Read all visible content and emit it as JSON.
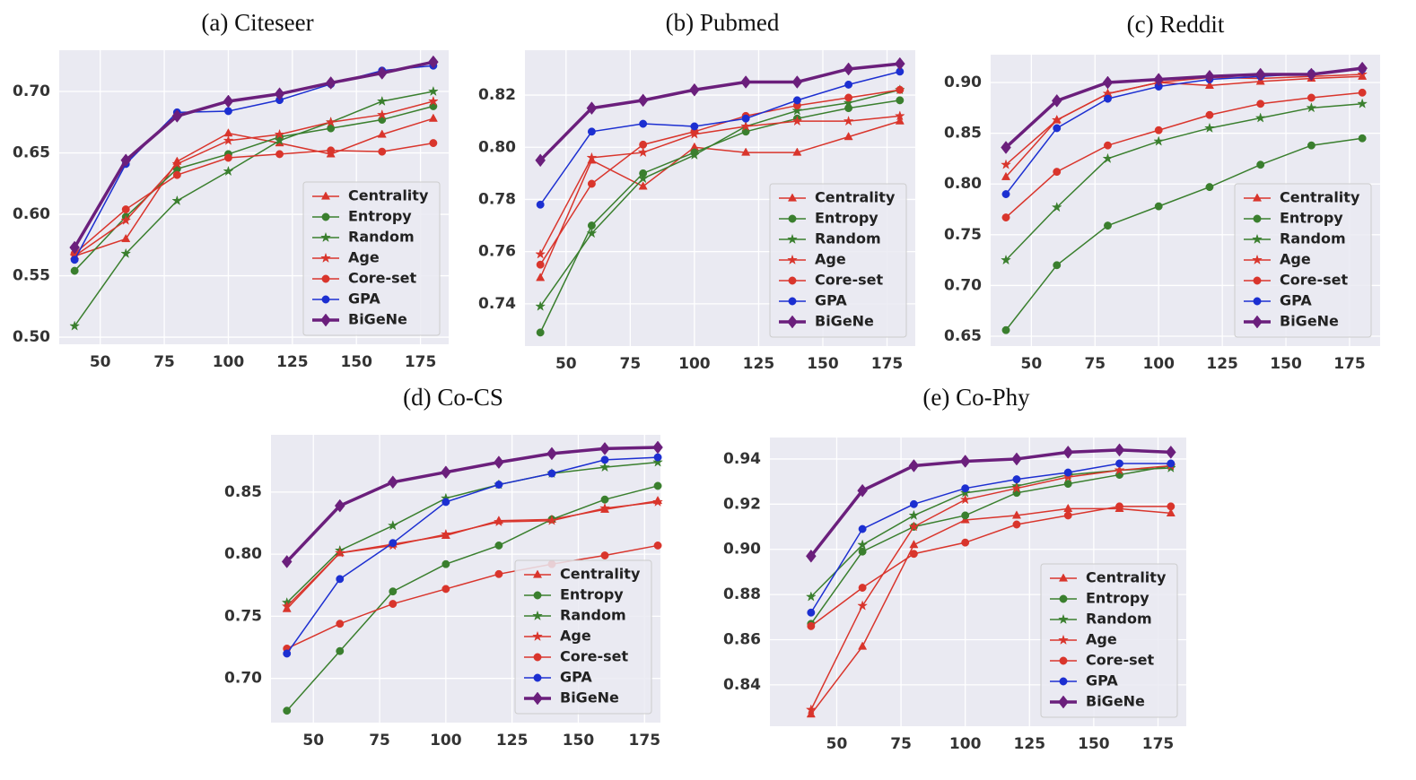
{
  "chart_data": [
    {
      "type": "line",
      "title": "(a) Citeseer",
      "x": [
        40,
        60,
        80,
        100,
        120,
        140,
        160,
        180
      ],
      "xlim": [
        34,
        186
      ],
      "xticks": [
        50,
        75,
        100,
        125,
        150,
        175
      ],
      "ylim": [
        0.4942,
        0.7336
      ],
      "yticks": [
        {
          "value": 0.5,
          "label": "0.50"
        },
        0.55,
        {
          "value": 0.6,
          "label": "0.60"
        },
        0.65,
        {
          "value": 0.7,
          "label": "0.70"
        }
      ],
      "grid": true,
      "background": "#eaeaf2",
      "legend": "lower right",
      "series": [
        {
          "name": "Centrality",
          "color": "#d9352c",
          "marker": "triangle",
          "linewidth": 1.5,
          "values": [
            0.566,
            0.58,
            0.643,
            0.666,
            0.658,
            0.649,
            0.665,
            0.678
          ]
        },
        {
          "name": "Entropy",
          "color": "#3a7f2e",
          "marker": "circle",
          "linewidth": 1.5,
          "values": [
            0.554,
            0.598,
            0.637,
            0.649,
            0.663,
            0.67,
            0.677,
            0.688
          ]
        },
        {
          "name": "Random",
          "color": "#3a7f2e",
          "marker": "star",
          "linewidth": 1.5,
          "values": [
            0.509,
            0.568,
            0.611,
            0.635,
            0.66,
            0.675,
            0.692,
            0.7
          ]
        },
        {
          "name": "Age",
          "color": "#d9352c",
          "marker": "star",
          "linewidth": 1.5,
          "values": [
            0.566,
            0.595,
            0.641,
            0.66,
            0.665,
            0.675,
            0.681,
            0.692
          ]
        },
        {
          "name": "Core-set",
          "color": "#d9352c",
          "marker": "circle",
          "linewidth": 1.5,
          "values": [
            0.568,
            0.604,
            0.632,
            0.646,
            0.649,
            0.652,
            0.651,
            0.658
          ]
        },
        {
          "name": "GPA",
          "color": "#1c2fd1",
          "marker": "circle",
          "linewidth": 1.5,
          "values": [
            0.563,
            0.641,
            0.683,
            0.684,
            0.693,
            0.706,
            0.717,
            0.721
          ]
        },
        {
          "name": "BiGeNe",
          "color": "#6b1f7c",
          "marker": "diamond",
          "linewidth": 3.5,
          "values": [
            0.573,
            0.644,
            0.68,
            0.692,
            0.698,
            0.707,
            0.715,
            0.724
          ]
        }
      ]
    },
    {
      "type": "line",
      "title": "(b) Pubmed",
      "x": [
        40,
        60,
        80,
        100,
        120,
        140,
        160,
        180
      ],
      "xlim": [
        34,
        186
      ],
      "xticks": [
        50,
        75,
        100,
        125,
        150,
        175
      ],
      "ylim": [
        0.7238,
        0.8372
      ],
      "yticks": [
        0.74,
        0.76,
        0.78,
        {
          "value": 0.8,
          "label": "0.80"
        },
        0.82
      ],
      "grid": true,
      "background": "#eaeaf2",
      "legend": "lower right",
      "series": [
        {
          "name": "Centrality",
          "color": "#d9352c",
          "marker": "triangle",
          "linewidth": 1.5,
          "values": [
            0.75,
            0.795,
            0.785,
            0.8,
            0.798,
            0.798,
            0.804,
            0.81
          ]
        },
        {
          "name": "Entropy",
          "color": "#3a7f2e",
          "marker": "circle",
          "linewidth": 1.5,
          "values": [
            0.729,
            0.77,
            0.79,
            0.798,
            0.806,
            0.811,
            0.815,
            0.818
          ]
        },
        {
          "name": "Random",
          "color": "#3a7f2e",
          "marker": "star",
          "linewidth": 1.5,
          "values": [
            0.739,
            0.767,
            0.788,
            0.797,
            0.808,
            0.814,
            0.817,
            0.822
          ]
        },
        {
          "name": "Age",
          "color": "#d9352c",
          "marker": "star",
          "linewidth": 1.5,
          "values": [
            0.759,
            0.796,
            0.798,
            0.805,
            0.808,
            0.81,
            0.81,
            0.812
          ]
        },
        {
          "name": "Core-set",
          "color": "#d9352c",
          "marker": "circle",
          "linewidth": 1.5,
          "values": [
            0.755,
            0.786,
            0.801,
            0.806,
            0.812,
            0.816,
            0.819,
            0.822
          ]
        },
        {
          "name": "GPA",
          "color": "#1c2fd1",
          "marker": "circle",
          "linewidth": 1.5,
          "values": [
            0.778,
            0.806,
            0.809,
            0.808,
            0.811,
            0.818,
            0.824,
            0.829
          ]
        },
        {
          "name": "BiGeNe",
          "color": "#6b1f7c",
          "marker": "diamond",
          "linewidth": 3.5,
          "values": [
            0.795,
            0.815,
            0.818,
            0.822,
            0.825,
            0.825,
            0.83,
            0.832
          ]
        }
      ]
    },
    {
      "type": "line",
      "title": "(c) Reddit",
      "x": [
        40,
        60,
        80,
        100,
        120,
        140,
        160,
        180
      ],
      "xlim": [
        34,
        187
      ],
      "xticks": [
        50,
        75,
        100,
        125,
        150,
        175
      ],
      "ylim": [
        0.6403,
        0.9274
      ],
      "yticks": [
        0.65,
        {
          "value": 0.7,
          "label": "0.70"
        },
        0.75,
        {
          "value": 0.8,
          "label": "0.80"
        },
        0.85,
        {
          "value": 0.9,
          "label": "0.90"
        }
      ],
      "grid": true,
      "background": "#eaeaf2",
      "legend": "lower right",
      "series": [
        {
          "name": "Centrality",
          "color": "#d9352c",
          "marker": "triangle",
          "linewidth": 1.5,
          "values": [
            0.807,
            0.863,
            0.889,
            0.9,
            0.897,
            0.901,
            0.904,
            0.906
          ]
        },
        {
          "name": "Entropy",
          "color": "#3a7f2e",
          "marker": "circle",
          "linewidth": 1.5,
          "values": [
            0.656,
            0.72,
            0.759,
            0.778,
            0.797,
            0.819,
            0.838,
            0.845
          ]
        },
        {
          "name": "Random",
          "color": "#3a7f2e",
          "marker": "star",
          "linewidth": 1.5,
          "values": [
            0.725,
            0.777,
            0.825,
            0.842,
            0.855,
            0.865,
            0.875,
            0.879
          ]
        },
        {
          "name": "Age",
          "color": "#d9352c",
          "marker": "star",
          "linewidth": 1.5,
          "values": [
            0.819,
            0.863,
            0.889,
            0.9,
            0.905,
            0.904,
            0.906,
            0.908
          ]
        },
        {
          "name": "Core-set",
          "color": "#d9352c",
          "marker": "circle",
          "linewidth": 1.5,
          "values": [
            0.767,
            0.812,
            0.838,
            0.853,
            0.868,
            0.879,
            0.885,
            0.89
          ]
        },
        {
          "name": "GPA",
          "color": "#1c2fd1",
          "marker": "circle",
          "linewidth": 1.5,
          "values": [
            0.79,
            0.855,
            0.884,
            0.896,
            0.903,
            0.906,
            0.909,
            0.913
          ]
        },
        {
          "name": "BiGeNe",
          "color": "#6b1f7c",
          "marker": "diamond",
          "linewidth": 3.5,
          "values": [
            0.836,
            0.882,
            0.9,
            0.903,
            0.906,
            0.908,
            0.908,
            0.914
          ]
        }
      ]
    },
    {
      "type": "line",
      "title": "(d) Co-CS",
      "x": [
        40,
        60,
        80,
        100,
        120,
        140,
        160,
        180
      ],
      "xlim": [
        34,
        181
      ],
      "xticks": [
        50,
        75,
        100,
        125,
        150,
        175
      ],
      "ylim": [
        0.6644,
        0.8961
      ],
      "yticks": [
        {
          "value": 0.7,
          "label": "0.70"
        },
        0.75,
        {
          "value": 0.8,
          "label": "0.80"
        },
        0.85
      ],
      "grid": true,
      "background": "#eaeaf2",
      "legend": "lower right",
      "series": [
        {
          "name": "Centrality",
          "color": "#d9352c",
          "marker": "triangle",
          "linewidth": 1.5,
          "values": [
            0.756,
            0.801,
            0.808,
            0.815,
            0.827,
            0.828,
            0.836,
            0.843
          ]
        },
        {
          "name": "Entropy",
          "color": "#3a7f2e",
          "marker": "circle",
          "linewidth": 1.5,
          "values": [
            0.674,
            0.722,
            0.77,
            0.792,
            0.807,
            0.828,
            0.844,
            0.855
          ]
        },
        {
          "name": "Random",
          "color": "#3a7f2e",
          "marker": "star",
          "linewidth": 1.5,
          "values": [
            0.761,
            0.803,
            0.823,
            0.845,
            0.856,
            0.865,
            0.87,
            0.874
          ]
        },
        {
          "name": "Age",
          "color": "#d9352c",
          "marker": "star",
          "linewidth": 1.5,
          "values": [
            0.758,
            0.801,
            0.807,
            0.816,
            0.826,
            0.827,
            0.837,
            0.842
          ]
        },
        {
          "name": "Core-set",
          "color": "#d9352c",
          "marker": "circle",
          "linewidth": 1.5,
          "values": [
            0.724,
            0.744,
            0.76,
            0.772,
            0.784,
            0.792,
            0.799,
            0.807
          ]
        },
        {
          "name": "GPA",
          "color": "#1c2fd1",
          "marker": "circle",
          "linewidth": 1.5,
          "values": [
            0.72,
            0.78,
            0.809,
            0.842,
            0.856,
            0.865,
            0.876,
            0.878
          ]
        },
        {
          "name": "BiGeNe",
          "color": "#6b1f7c",
          "marker": "diamond",
          "linewidth": 3.5,
          "values": [
            0.794,
            0.839,
            0.858,
            0.866,
            0.874,
            0.881,
            0.885,
            0.886
          ]
        }
      ]
    },
    {
      "type": "line",
      "title": "(e) Co-Phy",
      "x": [
        40,
        60,
        80,
        100,
        120,
        140,
        160,
        180
      ],
      "xlim": [
        24,
        186
      ],
      "xticks": [
        50,
        75,
        100,
        125,
        150,
        175
      ],
      "ylim": [
        0.8217,
        0.9495
      ],
      "yticks": [
        0.84,
        0.86,
        0.88,
        {
          "value": 0.9,
          "label": "0.90"
        },
        0.92,
        0.94
      ],
      "grid": true,
      "background": "#eaeaf2",
      "legend": "lower right",
      "series": [
        {
          "name": "Centrality",
          "color": "#d9352c",
          "marker": "triangle",
          "linewidth": 1.5,
          "values": [
            0.827,
            0.857,
            0.902,
            0.913,
            0.915,
            0.918,
            0.918,
            0.916
          ]
        },
        {
          "name": "Entropy",
          "color": "#3a7f2e",
          "marker": "circle",
          "linewidth": 1.5,
          "values": [
            0.867,
            0.899,
            0.91,
            0.915,
            0.925,
            0.929,
            0.933,
            0.937
          ]
        },
        {
          "name": "Random",
          "color": "#3a7f2e",
          "marker": "star",
          "linewidth": 1.5,
          "values": [
            0.879,
            0.902,
            0.915,
            0.925,
            0.928,
            0.933,
            0.935,
            0.936
          ]
        },
        {
          "name": "Age",
          "color": "#d9352c",
          "marker": "star",
          "linewidth": 1.5,
          "values": [
            0.829,
            0.875,
            0.91,
            0.922,
            0.927,
            0.932,
            0.935,
            0.937
          ]
        },
        {
          "name": "Core-set",
          "color": "#d9352c",
          "marker": "circle",
          "linewidth": 1.5,
          "values": [
            0.866,
            0.883,
            0.898,
            0.903,
            0.911,
            0.915,
            0.919,
            0.919
          ]
        },
        {
          "name": "GPA",
          "color": "#1c2fd1",
          "marker": "circle",
          "linewidth": 1.5,
          "values": [
            0.872,
            0.909,
            0.92,
            0.927,
            0.931,
            0.934,
            0.938,
            0.938
          ]
        },
        {
          "name": "BiGeNe",
          "color": "#6b1f7c",
          "marker": "diamond",
          "linewidth": 3.5,
          "values": [
            0.897,
            0.926,
            0.937,
            0.939,
            0.94,
            0.943,
            0.944,
            0.943
          ]
        }
      ]
    }
  ]
}
